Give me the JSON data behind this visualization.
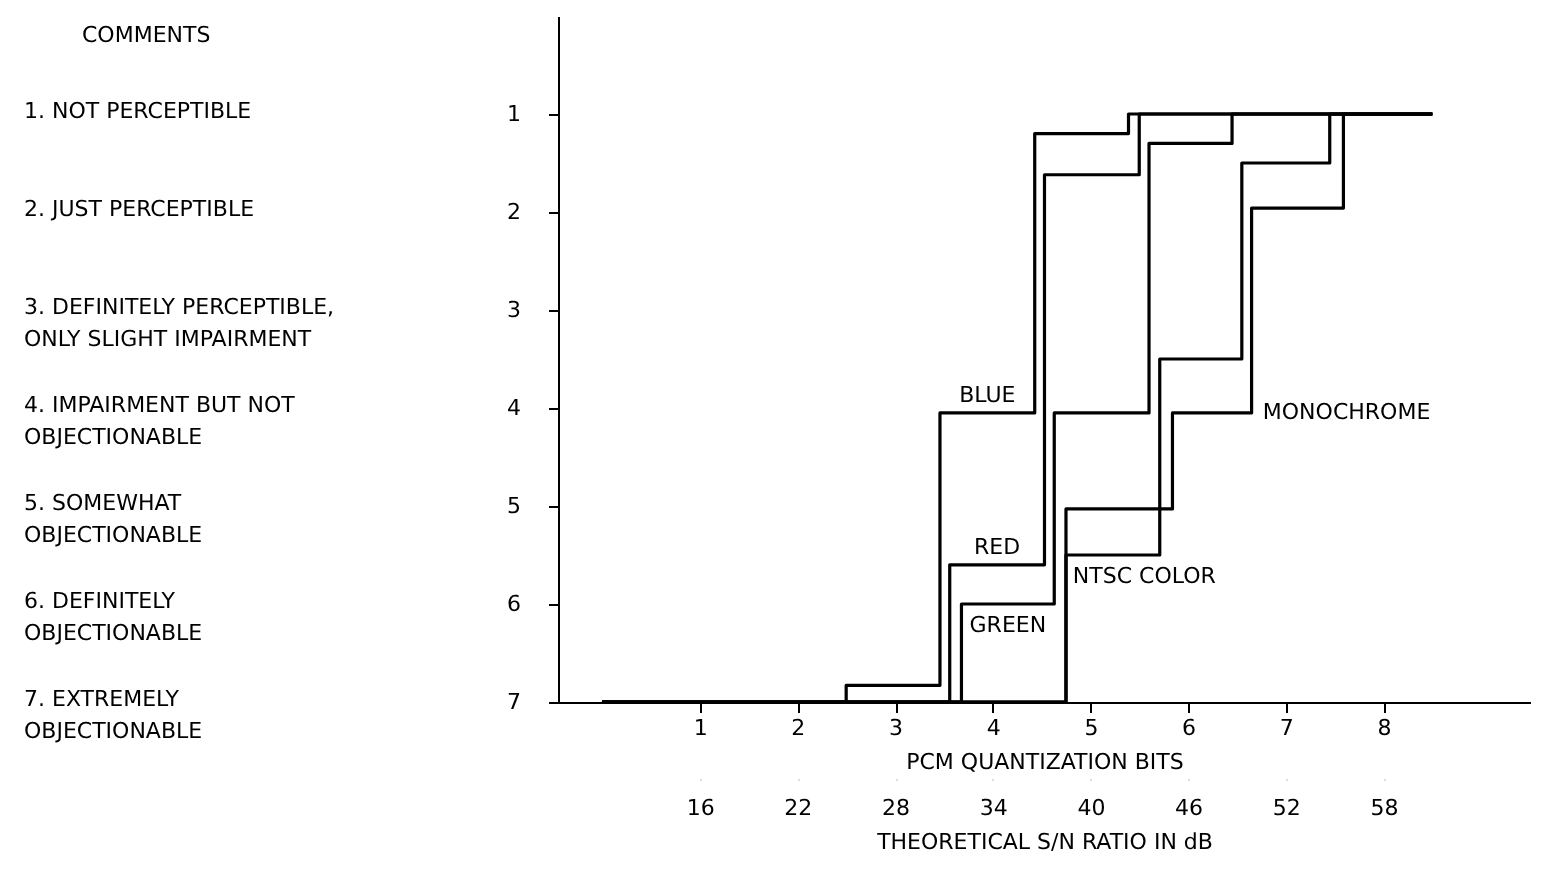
{
  "chart_data": {
    "type": "step",
    "xlabel": "PCM QUANTIZATION BITS",
    "x2label": "THEORETICAL S/N RATIO IN dB",
    "xlim": [
      -0.45,
      9.5
    ],
    "xticks": [
      1,
      2,
      3,
      4,
      5,
      6,
      7,
      8
    ],
    "x2lim": [
      7.3,
      67
    ],
    "x2ticks": [
      16,
      22,
      28,
      34,
      40,
      46,
      52,
      58
    ],
    "ylim": [
      7,
      0
    ],
    "yticks": [
      1,
      2,
      3,
      4,
      5,
      6,
      7
    ],
    "grid": false,
    "legend": false,
    "line_style": "solid",
    "marker": "none",
    "annotations": [
      "COMMENTS",
      "1. NOT PERCEPTIBLE",
      "2. JUST PERCEPTIBLE",
      "3. DEFINITELY PERCEPTIBLE,\nONLY SLIGHT IMPAIRMENT",
      "4. IMPAIRMENT BUT NOT\nOBJECTIONABLE",
      "5. SOMEWHAT\nOBJECTIONABLE",
      "6. DEFINITELY\nOBJECTIONABLE",
      "7. EXTREMELY\nOBJECTIONABLE"
    ],
    "series": [
      {
        "name": "BLUE",
        "color": "#000000",
        "x": [
          0,
          2.5,
          3.46,
          4.43,
          5.39,
          8.5
        ],
        "values": [
          7,
          6.83,
          4.05,
          1.2,
          1,
          1
        ]
      },
      {
        "name": "RED",
        "color": "#000000",
        "x": [
          0,
          3.56,
          4.53,
          5.5,
          8.5
        ],
        "values": [
          7,
          5.6,
          1.62,
          1,
          1
        ]
      },
      {
        "name": "GREEN",
        "color": "#000000",
        "x": [
          0,
          3.68,
          4.63,
          5.6,
          6.45,
          8.5
        ],
        "values": [
          7,
          6,
          4.05,
          1.3,
          1,
          1
        ]
      },
      {
        "name": "NTSC COLOR",
        "color": "#000000",
        "x": [
          0,
          4.75,
          5.71,
          6.55,
          7.45,
          8.5
        ],
        "values": [
          7,
          5.5,
          3.5,
          1.5,
          1,
          1
        ]
      },
      {
        "name": "MONOCHROME",
        "color": "#000000",
        "x": [
          0,
          4.75,
          5.84,
          6.65,
          7.59,
          8.5
        ],
        "values": [
          7,
          5.03,
          4.05,
          1.96,
          1,
          1
        ]
      }
    ]
  }
}
